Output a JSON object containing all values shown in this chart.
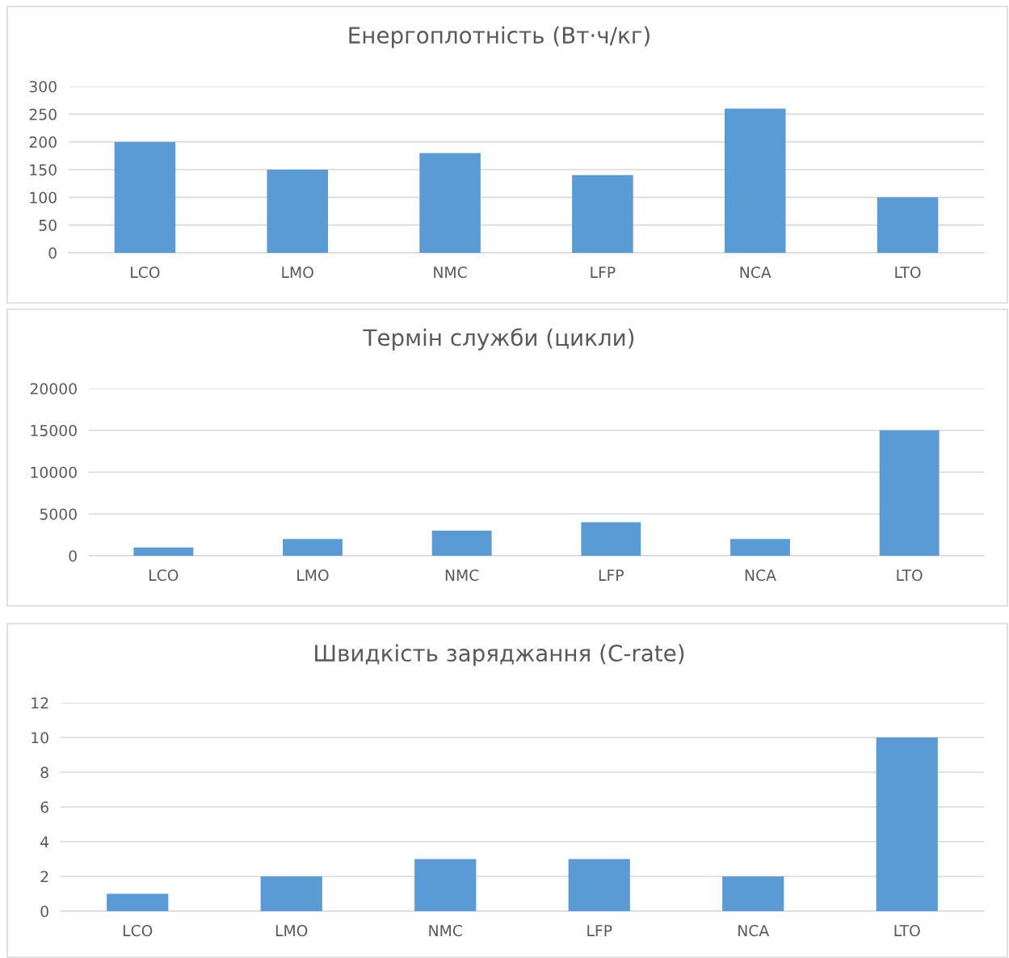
{
  "chart_data": [
    {
      "type": "bar",
      "title": "Енергоплотність (Вт·ч/кг)",
      "categories": [
        "LCO",
        "LMO",
        "NMC",
        "LFP",
        "NCA",
        "LTO"
      ],
      "values": [
        200,
        150,
        180,
        140,
        260,
        100
      ],
      "color": "#5b9bd5",
      "ylim": [
        0,
        300
      ],
      "yticks": [
        0,
        50,
        100,
        150,
        200,
        250,
        300
      ],
      "grid": "y"
    },
    {
      "type": "bar",
      "title": "Термін служби (цикли)",
      "categories": [
        "LCO",
        "LMO",
        "NMC",
        "LFP",
        "NCA",
        "LTO"
      ],
      "values": [
        1000,
        2000,
        3000,
        4000,
        2000,
        15000
      ],
      "color": "#5b9bd5",
      "ylim": [
        0,
        20000
      ],
      "yticks": [
        0,
        5000,
        10000,
        15000,
        20000
      ],
      "grid": "y"
    },
    {
      "type": "bar",
      "title": "Швидкість заряджання (C-rate)",
      "categories": [
        "LCO",
        "LMO",
        "NMC",
        "LFP",
        "NCA",
        "LTO"
      ],
      "values": [
        1,
        2,
        3,
        3,
        2,
        10
      ],
      "color": "#5b9bd5",
      "ylim": [
        0,
        12
      ],
      "yticks": [
        0,
        2,
        4,
        6,
        8,
        10,
        12
      ],
      "grid": "y"
    }
  ]
}
